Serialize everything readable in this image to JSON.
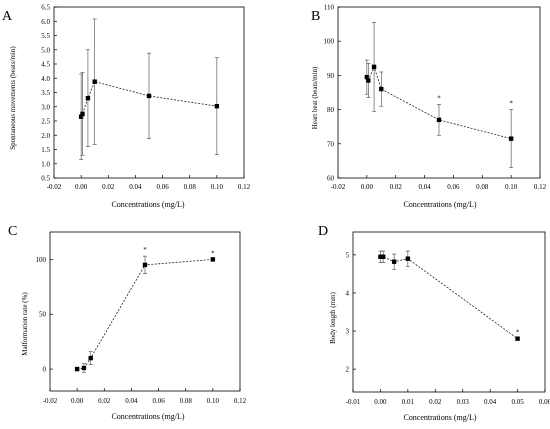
{
  "figure": {
    "panels": [
      {
        "key": "A",
        "panel_label": "A",
        "xlabel": "Concentrations (mg/L)",
        "ylabel": "Spontaneous movements (beats/min)",
        "xlim": [
          -0.02,
          0.12
        ],
        "ylim": [
          0.5,
          6.5
        ],
        "x_ticks": [
          -0.02,
          0,
          0.02,
          0.04,
          0.06,
          0.08,
          0.1,
          0.12
        ],
        "x_tick_labels": [
          "-0.02",
          "0.00",
          "0.02",
          "0.04",
          "0.06",
          "0.08",
          "0.10",
          "0.12"
        ],
        "y_ticks": [
          0.5,
          1,
          1.5,
          2,
          2.5,
          3,
          3.5,
          4,
          4.5,
          5,
          5.5,
          6,
          6.5
        ],
        "y_tick_labels": [
          "0.5",
          "1.0",
          "1.5",
          "2.0",
          "2.5",
          "3.0",
          "3.5",
          "4.0",
          "4.5",
          "5.0",
          "5.5",
          "6.0",
          "6.5"
        ]
      },
      {
        "key": "B",
        "panel_label": "B",
        "xlabel": "Concentrations (mg/L)",
        "ylabel": "Heart beat (beats/min)",
        "xlim": [
          -0.02,
          0.12
        ],
        "ylim": [
          60,
          110
        ],
        "x_ticks": [
          -0.02,
          0,
          0.02,
          0.04,
          0.06,
          0.08,
          0.1,
          0.12
        ],
        "x_tick_labels": [
          "-0.02",
          "0.00",
          "0.02",
          "0.04",
          "0.06",
          "0.08",
          "0.10",
          "0.12"
        ],
        "y_ticks": [
          60,
          70,
          80,
          90,
          100,
          110
        ],
        "y_tick_labels": [
          "60",
          "70",
          "80",
          "90",
          "100",
          "110"
        ]
      },
      {
        "key": "C",
        "panel_label": "C",
        "xlabel": "Concentrations (mg/L)",
        "ylabel": "Malformation rate (%)",
        "xlim": [
          -0.02,
          0.12
        ],
        "ylim": [
          -20,
          125
        ],
        "x_ticks": [
          -0.02,
          0,
          0.02,
          0.04,
          0.06,
          0.08,
          0.1,
          0.12
        ],
        "x_tick_labels": [
          "-0.02",
          "0.00",
          "0.02",
          "0.04",
          "0.06",
          "0.08",
          "0.10",
          "0.12"
        ],
        "y_ticks": [
          0,
          50,
          100
        ],
        "y_tick_labels": [
          "0",
          "50",
          "100"
        ]
      },
      {
        "key": "D",
        "panel_label": "D",
        "xlabel": "Concentrations (mg/L)",
        "ylabel": "Body length (mm)",
        "xlim": [
          -0.01,
          0.06
        ],
        "ylim": [
          1.4,
          5.6
        ],
        "x_ticks": [
          -0.01,
          0,
          0.01,
          0.02,
          0.03,
          0.04,
          0.05,
          0.06
        ],
        "x_tick_labels": [
          "-0.01",
          "0.00",
          "0.01",
          "0.02",
          "0.03",
          "0.04",
          "0.05",
          "0.06"
        ],
        "y_ticks": [
          2,
          3,
          4,
          5
        ],
        "y_tick_labels": [
          "2",
          "3",
          "4",
          "5"
        ]
      }
    ]
  },
  "chart_data": [
    {
      "panel": "A",
      "type": "scatter",
      "xlabel": "Concentrations (mg/L)",
      "ylabel": "Spontaneous movements (beats/min)",
      "xlim": [
        -0.02,
        0.12
      ],
      "ylim": [
        0.5,
        6.5
      ],
      "series": [
        {
          "x": [
            0,
            0.001,
            0.005,
            0.01,
            0.05,
            0.1
          ],
          "y": [
            2.65,
            2.75,
            3.3,
            3.88,
            3.38,
            3.02
          ],
          "err": [
            1.5,
            1.45,
            1.7,
            2.2,
            1.5,
            1.7
          ]
        }
      ],
      "significance": [],
      "grid": false
    },
    {
      "panel": "B",
      "type": "scatter",
      "xlabel": "Concentrations (mg/L)",
      "ylabel": "Heart beat (beats/min)",
      "xlim": [
        -0.02,
        0.12
      ],
      "ylim": [
        60,
        110
      ],
      "series": [
        {
          "x": [
            0,
            0.001,
            0.005,
            0.01,
            0.05,
            0.1
          ],
          "y": [
            89.5,
            88.5,
            92.5,
            86,
            77,
            71.5
          ],
          "err": [
            5,
            5,
            13,
            5,
            4.5,
            8.5
          ]
        }
      ],
      "significance": [
        "*",
        "*"
      ],
      "grid": false
    },
    {
      "panel": "C",
      "type": "scatter",
      "xlabel": "Concentrations (mg/L)",
      "ylabel": "Malformation rate (%)",
      "xlim": [
        -0.02,
        0.12
      ],
      "ylim": [
        -20,
        125
      ],
      "series": [
        {
          "x": [
            0,
            0.005,
            0.01,
            0.05,
            0.1
          ],
          "y": [
            0,
            1,
            10,
            95,
            100
          ],
          "err": [
            0,
            4,
            6,
            8,
            0
          ]
        }
      ],
      "significance": [
        "*",
        "*"
      ],
      "grid": false
    },
    {
      "panel": "D",
      "type": "scatter",
      "xlabel": "Concentrations (mg/L)",
      "ylabel": "Body length (mm)",
      "xlim": [
        -0.01,
        0.06
      ],
      "ylim": [
        1.4,
        5.6
      ],
      "series": [
        {
          "x": [
            0,
            0.001,
            0.005,
            0.01,
            0.05
          ],
          "y": [
            4.95,
            4.95,
            4.82,
            4.9,
            2.8
          ],
          "err": [
            0.15,
            0.15,
            0.2,
            0.2,
            0
          ]
        }
      ],
      "significance": [
        "*"
      ],
      "grid": false
    }
  ]
}
